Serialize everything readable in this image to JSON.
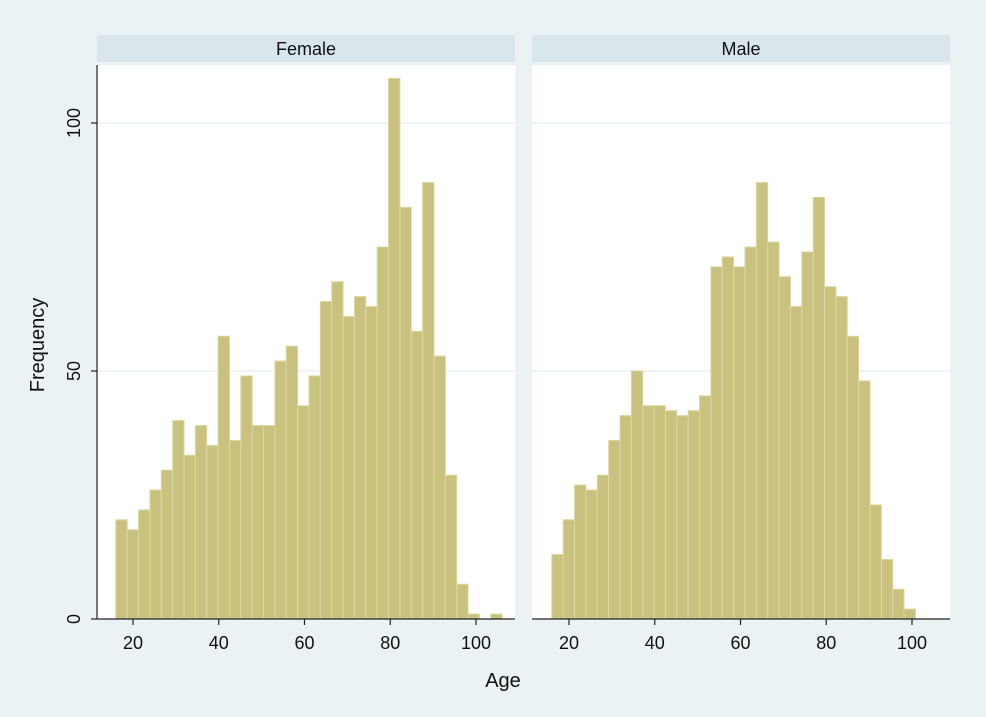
{
  "chart_data": {
    "type": "bar",
    "subtype": "histogram",
    "xlabel": "Age",
    "ylabel": "Frequency",
    "ylim": [
      0,
      112
    ],
    "xlim": [
      12,
      110
    ],
    "yticks": [
      0,
      50,
      100
    ],
    "xticks": [
      20,
      40,
      60,
      80,
      100
    ],
    "grid": true,
    "bar_color": "#c9c27f",
    "bar_edge_color": "#ddd6a0",
    "strip_color": "#d9e6ec",
    "background_color": "#eaf2f3",
    "bin_start": 16,
    "bin_width": 2.65,
    "panels": [
      {
        "title": "Female",
        "values": [
          20,
          18,
          22,
          26,
          30,
          40,
          33,
          39,
          35,
          57,
          36,
          49,
          39,
          39,
          52,
          55,
          43,
          49,
          64,
          68,
          61,
          65,
          63,
          75,
          109,
          83,
          58,
          88,
          53,
          29,
          7,
          1,
          0,
          1
        ]
      },
      {
        "title": "Male",
        "values": [
          13,
          20,
          27,
          26,
          29,
          36,
          41,
          50,
          43,
          43,
          42,
          41,
          42,
          45,
          71,
          73,
          71,
          75,
          88,
          76,
          69,
          63,
          74,
          85,
          67,
          65,
          57,
          48,
          23,
          12,
          6,
          2
        ]
      }
    ]
  }
}
